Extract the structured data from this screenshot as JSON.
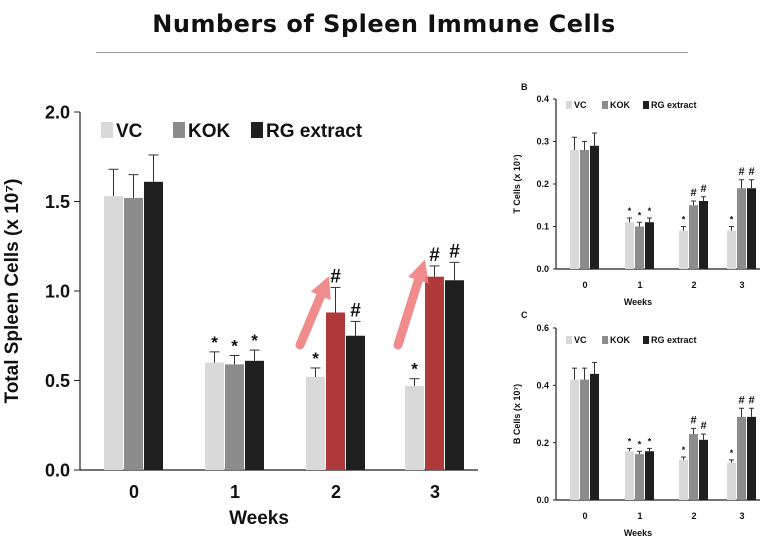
{
  "page_title": "Numbers of Spleen Immune Cells",
  "colors": {
    "vc": "#d9d9d9",
    "kok": "#8c8c8c",
    "rg": "#1f1f1f",
    "highlight": "#b03a3a",
    "arrow": "#f08080"
  },
  "chart_data": [
    {
      "id": "A",
      "type": "bar",
      "panel_label": "",
      "categories": [
        "0",
        "1",
        "2",
        "3"
      ],
      "xlabel": "Weeks",
      "ylabel": "Total Spleen Cells (x 10⁷)",
      "ylim": [
        0,
        2.0
      ],
      "yticks": [
        "0.0",
        "0.5",
        "1.0",
        "1.5",
        "2.0"
      ],
      "legend": "top-left",
      "series": [
        {
          "name": "VC",
          "values": [
            1.53,
            0.6,
            0.52,
            0.47
          ],
          "errors": [
            0.15,
            0.06,
            0.05,
            0.04
          ]
        },
        {
          "name": "KOK",
          "values": [
            1.52,
            0.59,
            0.88,
            1.08
          ],
          "errors": [
            0.13,
            0.05,
            0.14,
            0.06
          ]
        },
        {
          "name": "RG extract",
          "values": [
            1.61,
            0.61,
            0.75,
            1.06
          ],
          "errors": [
            0.15,
            0.06,
            0.08,
            0.1
          ]
        }
      ],
      "annotations": [
        [
          "",
          "",
          ""
        ],
        [
          "*",
          "*",
          "*"
        ],
        [
          "*",
          "#",
          "#"
        ],
        [
          "*",
          "#",
          "#"
        ]
      ],
      "highlighted_bars": [
        [
          2,
          1
        ],
        [
          3,
          1
        ]
      ]
    },
    {
      "id": "B",
      "type": "bar",
      "panel_label": "B",
      "categories": [
        "0",
        "1",
        "2",
        "3"
      ],
      "xlabel": "Weeks",
      "ylabel": "T Cells (x 10⁷)",
      "ylim": [
        0,
        0.4
      ],
      "yticks": [
        "0.0",
        "0.1",
        "0.2",
        "0.3",
        "0.4"
      ],
      "legend": "top-left",
      "series": [
        {
          "name": "VC",
          "values": [
            0.28,
            0.11,
            0.09,
            0.09
          ],
          "errors": [
            0.03,
            0.01,
            0.01,
            0.01
          ]
        },
        {
          "name": "KOK",
          "values": [
            0.28,
            0.1,
            0.15,
            0.19
          ],
          "errors": [
            0.02,
            0.01,
            0.01,
            0.02
          ]
        },
        {
          "name": "RG extract",
          "values": [
            0.29,
            0.11,
            0.16,
            0.19
          ],
          "errors": [
            0.03,
            0.01,
            0.01,
            0.02
          ]
        }
      ],
      "annotations": [
        [
          "",
          "",
          ""
        ],
        [
          "*",
          "*",
          "*"
        ],
        [
          "*",
          "#",
          "#"
        ],
        [
          "*",
          "#",
          "#"
        ]
      ]
    },
    {
      "id": "C",
      "type": "bar",
      "panel_label": "C",
      "categories": [
        "0",
        "1",
        "2",
        "3"
      ],
      "xlabel": "Weeks",
      "ylabel": "B Cells (x 10⁷)",
      "ylim": [
        0,
        0.6
      ],
      "yticks": [
        "0.0",
        "0.2",
        "0.4",
        "0.6"
      ],
      "legend": "top-left",
      "series": [
        {
          "name": "VC",
          "values": [
            0.42,
            0.17,
            0.14,
            0.13
          ],
          "errors": [
            0.04,
            0.01,
            0.01,
            0.01
          ]
        },
        {
          "name": "KOK",
          "values": [
            0.42,
            0.16,
            0.23,
            0.29
          ],
          "errors": [
            0.04,
            0.01,
            0.02,
            0.03
          ]
        },
        {
          "name": "RG extract",
          "values": [
            0.44,
            0.17,
            0.21,
            0.29
          ],
          "errors": [
            0.04,
            0.01,
            0.02,
            0.03
          ]
        }
      ],
      "annotations": [
        [
          "",
          "",
          ""
        ],
        [
          "*",
          "*",
          "*"
        ],
        [
          "*",
          "#",
          "#"
        ],
        [
          "*",
          "#",
          "#"
        ]
      ]
    }
  ]
}
